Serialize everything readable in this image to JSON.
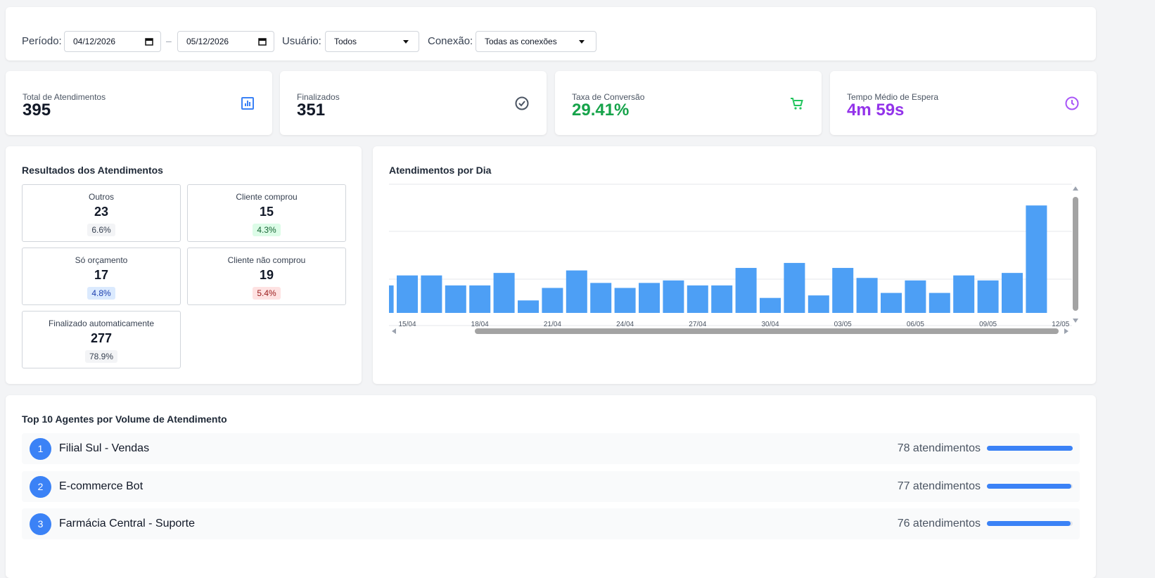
{
  "filters": {
    "period_label": "Período:",
    "date_from": "04/12/2026",
    "date_separator": "–",
    "date_to": "05/12/2026",
    "user_label": "Usuário:",
    "user_value": "Todos",
    "connection_label": "Conexão:",
    "connection_value": "Todas as conexões"
  },
  "kpis": [
    {
      "label": "Total de Atendimentos",
      "value": 395,
      "color": "#111827"
    },
    {
      "label": "Finalizados",
      "value": 351,
      "color": "#111827"
    },
    {
      "label": "Taxa de Conversão",
      "value": "29.41%",
      "color": "#16a34a"
    },
    {
      "label": "Tempo Médio de Espera",
      "value": "4m 59s",
      "color": "#9333ea"
    }
  ],
  "results": {
    "title": "Resultados dos Atendimentos",
    "items": [
      {
        "label": "Outros",
        "count": 23,
        "share": "6.6%"
      },
      {
        "label": "Cliente comprou",
        "count": 15,
        "share": "4.3%"
      },
      {
        "label": "Só orçamento",
        "count": 17,
        "share": "4.8%"
      },
      {
        "label": "Cliente não comprou",
        "count": 19,
        "share": "5.4%"
      },
      {
        "label": "Finalizado automaticamente",
        "count": 277,
        "share": "78.9%"
      }
    ]
  },
  "chart_data": {
    "type": "bar",
    "title": "Atendimentos por Dia",
    "color": "#4d9ff5",
    "categories": [
      null,
      "15/04",
      null,
      null,
      "18/04",
      null,
      null,
      "21/04",
      null,
      null,
      "24/04",
      null,
      null,
      "27/04",
      null,
      null,
      "30/04",
      null,
      null,
      "03/05",
      null,
      null,
      "06/05",
      null,
      null,
      "09/05",
      null,
      null,
      "12/05"
    ],
    "values": [
      11,
      15,
      15,
      11,
      11,
      16,
      5,
      10,
      17,
      12,
      10,
      12,
      13,
      11,
      11,
      18,
      6,
      20,
      7,
      18,
      14,
      8,
      13,
      8,
      15,
      13,
      16,
      43,
      0
    ],
    "ylim": [
      0,
      51.5
    ]
  },
  "agents": {
    "title": "Top 10 Agentes por Volume de Atendimento",
    "items": [
      {
        "rank": 1,
        "name": "Filial Sul - Vendas",
        "count": 78,
        "count_label": "78 atendimentos"
      },
      {
        "rank": 2,
        "name": "E-commerce Bot",
        "count": 77,
        "count_label": "77 atendimentos"
      },
      {
        "rank": 3,
        "name": "Farmácia Central - Suporte",
        "count": 76,
        "count_label": "76 atendimentos"
      }
    ]
  }
}
